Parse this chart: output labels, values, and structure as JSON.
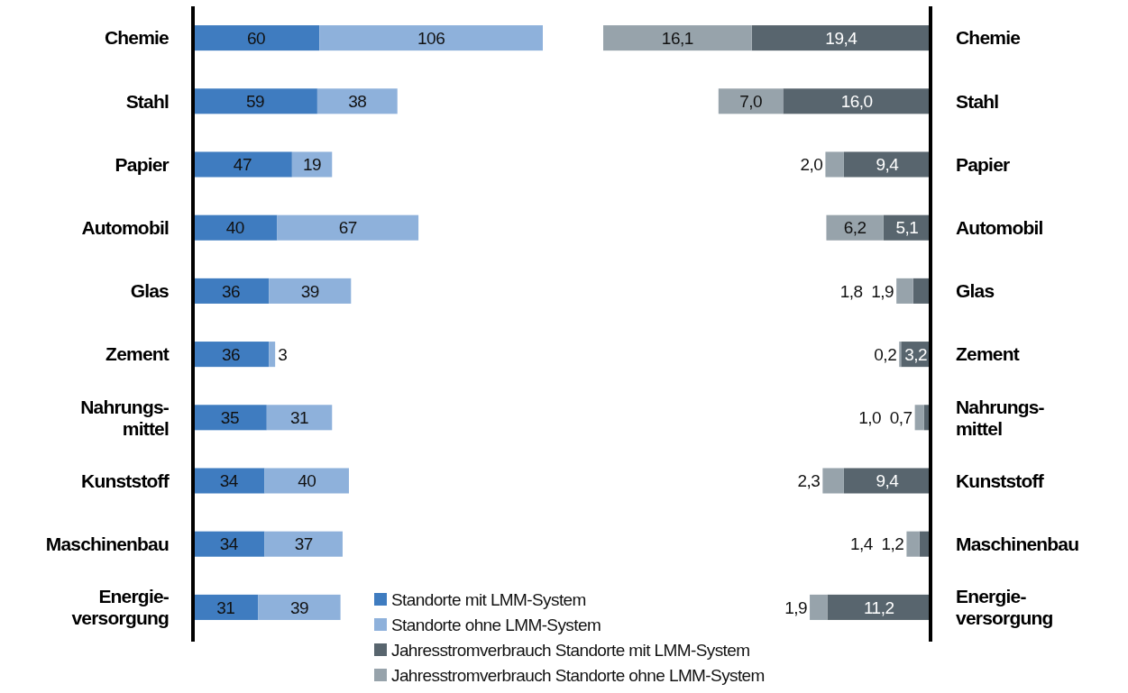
{
  "chart_data": [
    {
      "type": "bar",
      "orientation": "horizontal",
      "stacked": true,
      "categories": [
        "Chemie",
        "Stahl",
        "Papier",
        "Automobil",
        "Glas",
        "Zement",
        "Nahrungs-\nmittel",
        "Kunststoff",
        "Maschinenbau",
        "Energie-\nversorgung"
      ],
      "series": [
        {
          "name": "Standorte mit LMM-System",
          "color": "#3f7cc0",
          "values": [
            60,
            59,
            47,
            40,
            36,
            36,
            35,
            34,
            34,
            31
          ]
        },
        {
          "name": "Standorte ohne LMM-System",
          "color": "#8eb1db",
          "values": [
            106,
            38,
            19,
            67,
            39,
            3,
            31,
            40,
            37,
            39
          ]
        }
      ],
      "tick_labels": "y",
      "data_labels": true,
      "legend": "bottom"
    },
    {
      "type": "bar",
      "orientation": "horizontal",
      "stacked": true,
      "categories": [
        "Chemie",
        "Stahl",
        "Papier",
        "Automobil",
        "Glas",
        "Zement",
        "Nahrungs-\nmittel",
        "Kunststoff",
        "Maschinenbau",
        "Energie-\nversorgung"
      ],
      "series": [
        {
          "name": "Jahresstromverbrauch Standorte mit LMM-System",
          "color": "#58656e",
          "values": [
            19.4,
            16.0,
            9.4,
            5.1,
            1.9,
            3.2,
            0.7,
            9.4,
            1.2,
            11.2
          ],
          "value_labels": [
            "19,4",
            "16,0",
            "9,4",
            "5,1",
            "1,9",
            "3,2",
            "0,7",
            "9,4",
            "1,2",
            "11,2"
          ]
        },
        {
          "name": "Jahresstromverbrauch Standorte ohne LMM-System",
          "color": "#97a3ab",
          "values": [
            16.1,
            7.0,
            2.0,
            6.2,
            1.8,
            0.2,
            1.0,
            2.3,
            1.4,
            1.9
          ],
          "value_labels": [
            "16,1",
            "7,0",
            "2,0",
            "6,2",
            "1,8",
            "0,2",
            "1,0",
            "2,3",
            "1,4",
            "1,9"
          ]
        }
      ],
      "tick_labels": "y",
      "legend": "bottom"
    }
  ]
}
